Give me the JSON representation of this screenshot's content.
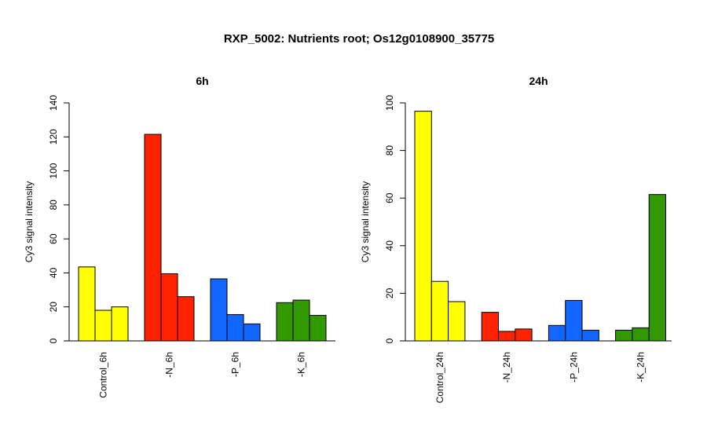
{
  "figure_title": "RXP_5002: Nutrients root; Os12g0108900_35775",
  "colors": {
    "Control": "#ffff00",
    "N": "#ff2200",
    "P": "#1166ff",
    "K": "#339900"
  },
  "chart_data": [
    {
      "type": "bar",
      "title": "6h",
      "ylabel": "Cy3 signal intensity",
      "ylim": [
        0,
        140
      ],
      "yticks": [
        0,
        20,
        40,
        60,
        80,
        100,
        120,
        140
      ],
      "groups": [
        {
          "label": "Control_6h",
          "color_key": "Control",
          "values": [
            43.5,
            18,
            20
          ]
        },
        {
          "label": "-N_6h",
          "color_key": "N",
          "values": [
            121.5,
            39.5,
            26
          ]
        },
        {
          "label": "-P_6h",
          "color_key": "P",
          "values": [
            36.5,
            15.5,
            10
          ]
        },
        {
          "label": "-K_6h",
          "color_key": "K",
          "values": [
            22.5,
            24,
            15
          ]
        }
      ]
    },
    {
      "type": "bar",
      "title": "24h",
      "ylabel": "Cy3 signal intensity",
      "ylim": [
        0,
        100
      ],
      "yticks": [
        0,
        20,
        40,
        60,
        80,
        100
      ],
      "groups": [
        {
          "label": "Control_24h",
          "color_key": "Control",
          "values": [
            96.5,
            25,
            16.5
          ]
        },
        {
          "label": "-N_24h",
          "color_key": "N",
          "values": [
            12,
            4,
            5
          ]
        },
        {
          "label": "-P_24h",
          "color_key": "P",
          "values": [
            6.5,
            17,
            4.5
          ]
        },
        {
          "label": "-K_24h",
          "color_key": "K",
          "values": [
            4.5,
            5.5,
            61.5
          ]
        }
      ]
    }
  ]
}
